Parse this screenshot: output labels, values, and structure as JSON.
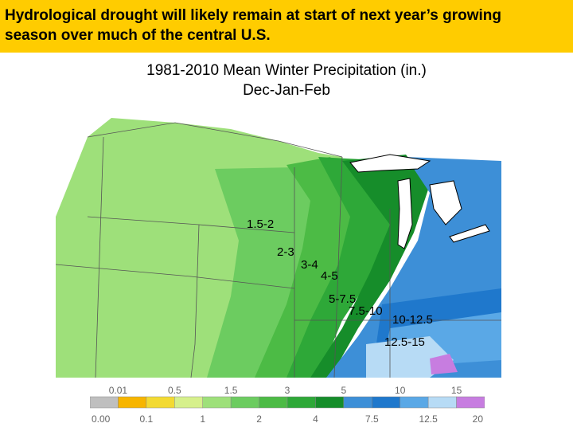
{
  "banner": {
    "text": "Hydrological drought will likely remain at start of next year’s growing\nseason over much of the central U.S.",
    "color": "#ffcc00"
  },
  "map": {
    "title_line1": "1981-2010 Mean Winter Precipitation (in.)",
    "title_line2": "Dec-Jan-Feb",
    "region_labels": [
      "1.5-2",
      "2-3",
      "3-4",
      "4-5",
      "5-7.5",
      "7.5-10",
      "10-12.5",
      "12.5-15"
    ],
    "zone_colors": {
      "v0_0.01": "#c0c0c0",
      "v0.01_0.1": "#f7b500",
      "v0.1_0.5": "#f3da33",
      "v0.5_1": "#d6f08c",
      "v1_1.5": "#9ee07a",
      "v1.5_2": "#6ccc60",
      "v2_3": "#4cbb45",
      "v3_4": "#2ea838",
      "v4_5": "#168d2a",
      "v5_7.5": "#3d8fd7",
      "v7.5_10": "#1f78cc",
      "v10_12.5": "#5aa8e6",
      "v12.5_15": "#b7dbf5",
      "v15_20": "#c77de0"
    }
  },
  "legend": {
    "upper_ticks": [
      "0.01",
      "0.5",
      "1.5",
      "3",
      "5",
      "10",
      "15"
    ],
    "lower_ticks": [
      "0.00",
      "0.1",
      "1",
      "2",
      "4",
      "7.5",
      "12.5",
      "20"
    ],
    "colors": [
      "#bfbfbf",
      "#f7b500",
      "#f3da33",
      "#d6f08c",
      "#9ee07a",
      "#6ccc60",
      "#4cbb45",
      "#2ea838",
      "#168d2a",
      "#3d8fd7",
      "#1f78cc",
      "#5aa8e6",
      "#b7dbf5",
      "#c77de0"
    ]
  }
}
